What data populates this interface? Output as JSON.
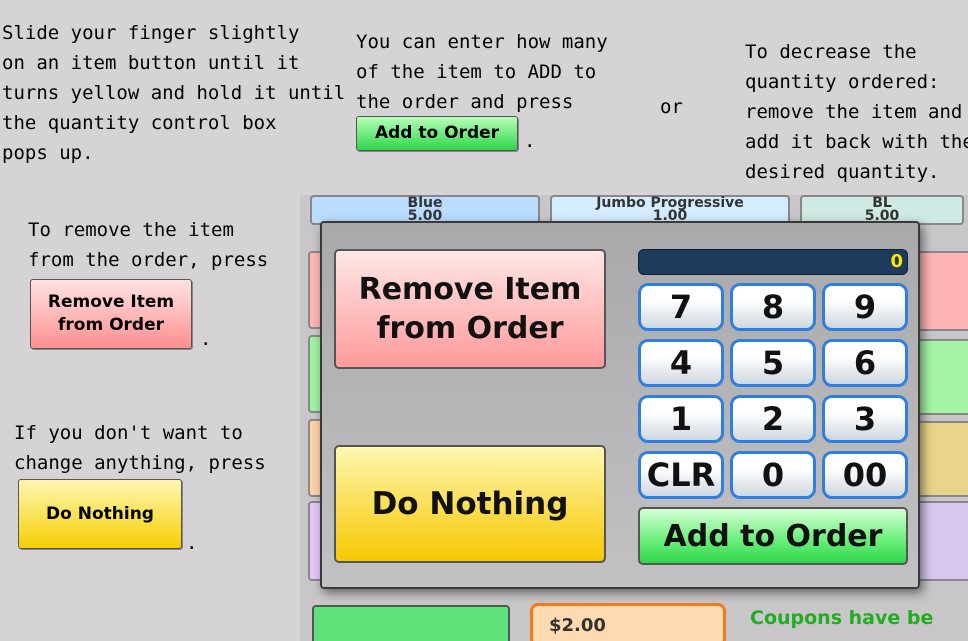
{
  "instructions": {
    "slide_note": "Slide your finger slightly\non an item button until it\nturns yellow and hold it until\nthe quantity control box\npops up.",
    "enter_note": "You can enter how many\nof the item to ADD to\nthe order and press",
    "or_text": "or",
    "decrease_note": "To decrease the\nquantity ordered:\nremove the item and\nadd it back with the\ndesired quantity.",
    "remove_note": "To remove the item\nfrom the order, press",
    "nothing_note": "If you don't want to\nchange anything, press",
    "period": "."
  },
  "mini_buttons": {
    "add_label": "Add to Order",
    "remove_label": "Remove Item\nfrom Order",
    "nothing_label": "Do Nothing"
  },
  "background_screen": {
    "tile1": "Blue\n5.00",
    "tile2": "Jumbo Progressive\n1.00",
    "tile3": "BL\n5.00",
    "price": "$2.00",
    "coupon_text": "Coupons have be"
  },
  "dialog": {
    "remove_label": "Remove Item\nfrom Order",
    "nothing_label": "Do Nothing",
    "display_value": "0",
    "keys": [
      "7",
      "8",
      "9",
      "4",
      "5",
      "6",
      "1",
      "2",
      "3",
      "CLR",
      "0",
      "00"
    ],
    "add_label": "Add to Order"
  },
  "colors": {
    "background": "#d6d3d6",
    "display_bg": "#1e3a5c",
    "display_text": "#ffe600",
    "key_border": "#2f7fe0",
    "add_green": "#2fd64a",
    "remove_red": "#ff9a9a",
    "nothing_yellow": "#f7c800"
  }
}
